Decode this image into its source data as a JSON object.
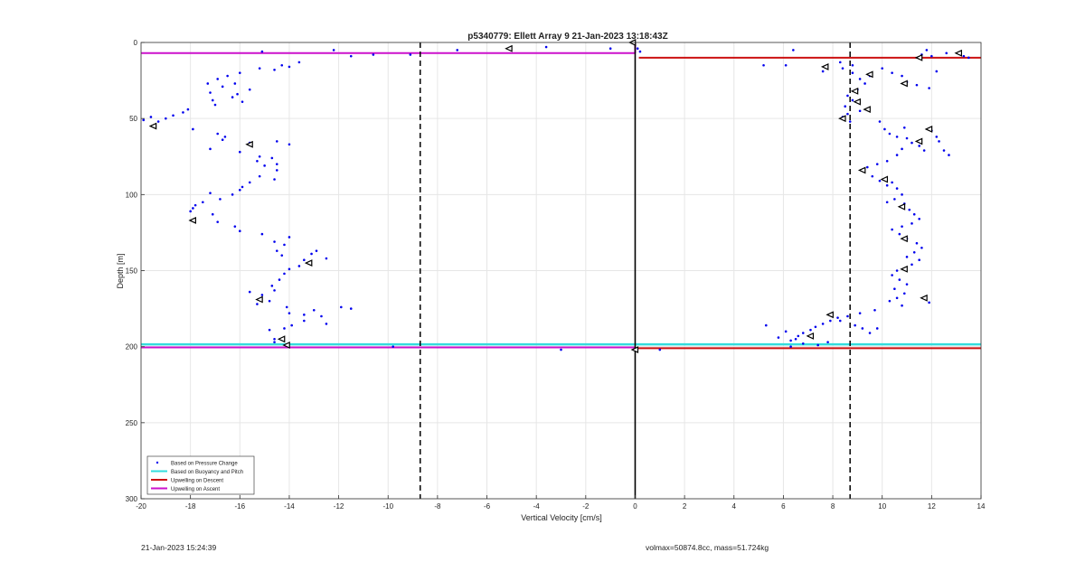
{
  "footer": {
    "timestamp": "21-Jan-2023 15:24:39",
    "volmax_mass": "volmax=50874.8cc, mass=51.724kg"
  },
  "colors": {
    "pressure": "#0000ee",
    "buoyancy": "#33dddd",
    "descent": "#cc1111",
    "ascent": "#cc11cc",
    "grid": "#e6e6e6"
  },
  "chart_data": {
    "type": "scatter",
    "title": "p5340779: Ellett Array 9 21-Jan-2023 13:18:43Z",
    "xlabel": "Vertical Velocity [cm/s]",
    "ylabel": "Depth [m]",
    "xlim": [
      -20,
      14
    ],
    "ylim": [
      0,
      300
    ],
    "y_reversed": true,
    "grid": true,
    "xticks": [
      -20,
      -18,
      -16,
      -14,
      -12,
      -10,
      -8,
      -6,
      -4,
      -2,
      0,
      2,
      4,
      6,
      8,
      10,
      12,
      14
    ],
    "yticks": [
      0,
      50,
      100,
      150,
      200,
      250,
      300
    ],
    "reference_lines": {
      "zero_velocity": 0,
      "dashed": [
        -8.7,
        8.7
      ]
    },
    "legend": {
      "placement": "bottom-left",
      "entries": [
        "Based on Pressure Change",
        "Based on Buoyancy and Pitch",
        "Upwelling on Descent",
        "Upwelling on Ascent"
      ]
    },
    "series": [
      {
        "name": "Based on Pressure Change",
        "marker": "dot",
        "points": [
          [
            -19.9,
            51
          ],
          [
            -19.6,
            49
          ],
          [
            -19.3,
            52
          ],
          [
            -19.0,
            50
          ],
          [
            -18.7,
            48
          ],
          [
            -18.3,
            46
          ],
          [
            -18.1,
            44
          ],
          [
            -17.9,
            57
          ],
          [
            -17.3,
            27
          ],
          [
            -17.2,
            33
          ],
          [
            -17.1,
            38
          ],
          [
            -17.0,
            41
          ],
          [
            -16.9,
            24
          ],
          [
            -16.7,
            29
          ],
          [
            -16.5,
            22
          ],
          [
            -16.3,
            36
          ],
          [
            -16.2,
            27
          ],
          [
            -16.1,
            34
          ],
          [
            -16.0,
            20
          ],
          [
            -15.9,
            39
          ],
          [
            -15.6,
            31
          ],
          [
            -15.2,
            17
          ],
          [
            -14.6,
            18
          ],
          [
            -14.3,
            15
          ],
          [
            -14.0,
            16
          ],
          [
            -13.6,
            13
          ],
          [
            -15.1,
            6
          ],
          [
            -16.9,
            60
          ],
          [
            -16.7,
            64
          ],
          [
            -16.6,
            62
          ],
          [
            -17.2,
            70
          ],
          [
            -16.0,
            72
          ],
          [
            -15.6,
            66
          ],
          [
            -15.3,
            78
          ],
          [
            -15.0,
            81
          ],
          [
            -15.2,
            75
          ],
          [
            -14.7,
            76
          ],
          [
            -14.5,
            80
          ],
          [
            -14.5,
            84
          ],
          [
            -14.5,
            65
          ],
          [
            -14.0,
            67
          ],
          [
            -14.6,
            90
          ],
          [
            -15.2,
            88
          ],
          [
            -15.6,
            92
          ],
          [
            -15.9,
            95
          ],
          [
            -16.0,
            97
          ],
          [
            -16.3,
            100
          ],
          [
            -17.2,
            99
          ],
          [
            -16.8,
            103
          ],
          [
            -17.5,
            105
          ],
          [
            -17.8,
            107
          ],
          [
            -17.9,
            109
          ],
          [
            -18.0,
            111
          ],
          [
            -17.1,
            113
          ],
          [
            -16.9,
            118
          ],
          [
            -16.2,
            121
          ],
          [
            -16.0,
            124
          ],
          [
            -15.1,
            126
          ],
          [
            -14.6,
            131
          ],
          [
            -14.2,
            133
          ],
          [
            -14.0,
            128
          ],
          [
            -14.5,
            137
          ],
          [
            -14.3,
            140
          ],
          [
            -13.4,
            143
          ],
          [
            -13.1,
            139
          ],
          [
            -12.9,
            137
          ],
          [
            -12.5,
            142
          ],
          [
            -13.6,
            147
          ],
          [
            -14.0,
            149
          ],
          [
            -14.2,
            152
          ],
          [
            -14.4,
            156
          ],
          [
            -14.7,
            160
          ],
          [
            -14.6,
            163
          ],
          [
            -15.1,
            166
          ],
          [
            -15.6,
            164
          ],
          [
            -15.3,
            172
          ],
          [
            -14.8,
            170
          ],
          [
            -14.1,
            174
          ],
          [
            -14.0,
            178
          ],
          [
            -13.4,
            179
          ],
          [
            -13.0,
            176
          ],
          [
            -12.7,
            180
          ],
          [
            -12.5,
            185
          ],
          [
            -13.4,
            183
          ],
          [
            -13.9,
            186
          ],
          [
            -14.2,
            188
          ],
          [
            -14.8,
            189
          ],
          [
            -14.6,
            195
          ],
          [
            -14.6,
            197
          ],
          [
            -11.9,
            174
          ],
          [
            -11.5,
            175
          ],
          [
            -12.2,
            5
          ],
          [
            -11.5,
            9
          ],
          [
            -10.6,
            8
          ],
          [
            -9.1,
            8
          ],
          [
            -7.2,
            5
          ],
          [
            -3.6,
            3
          ],
          [
            -1.0,
            4
          ],
          [
            0.1,
            4
          ],
          [
            0.2,
            6
          ],
          [
            -9.8,
            200
          ],
          [
            -3.0,
            202
          ],
          [
            1.0,
            202
          ],
          [
            5.2,
            15
          ],
          [
            6.1,
            15
          ],
          [
            6.4,
            5
          ],
          [
            7.6,
            19
          ],
          [
            8.3,
            13
          ],
          [
            8.4,
            17
          ],
          [
            8.8,
            15
          ],
          [
            8.8,
            20
          ],
          [
            9.1,
            24
          ],
          [
            9.3,
            27
          ],
          [
            9.5,
            22
          ],
          [
            9.0,
            31
          ],
          [
            8.6,
            35
          ],
          [
            8.8,
            38
          ],
          [
            8.5,
            42
          ],
          [
            8.6,
            47
          ],
          [
            8.4,
            49
          ],
          [
            8.7,
            52
          ],
          [
            9.1,
            45
          ],
          [
            10.0,
            17
          ],
          [
            10.4,
            20
          ],
          [
            10.8,
            22
          ],
          [
            11.0,
            26
          ],
          [
            11.4,
            28
          ],
          [
            11.9,
            30
          ],
          [
            12.2,
            19
          ],
          [
            11.6,
            8
          ],
          [
            12.0,
            9
          ],
          [
            12.6,
            7
          ],
          [
            13.3,
            9
          ],
          [
            13.5,
            10
          ],
          [
            11.8,
            5
          ],
          [
            9.9,
            52
          ],
          [
            10.1,
            57
          ],
          [
            10.3,
            60
          ],
          [
            10.6,
            62
          ],
          [
            10.9,
            56
          ],
          [
            11.0,
            63
          ],
          [
            11.2,
            66
          ],
          [
            11.5,
            68
          ],
          [
            11.7,
            71
          ],
          [
            12.0,
            58
          ],
          [
            12.2,
            62
          ],
          [
            12.3,
            65
          ],
          [
            12.5,
            71
          ],
          [
            12.7,
            74
          ],
          [
            10.8,
            70
          ],
          [
            10.6,
            74
          ],
          [
            10.2,
            78
          ],
          [
            9.8,
            80
          ],
          [
            9.4,
            82
          ],
          [
            9.2,
            84
          ],
          [
            9.6,
            88
          ],
          [
            9.9,
            91
          ],
          [
            10.2,
            94
          ],
          [
            10.4,
            92
          ],
          [
            10.6,
            96
          ],
          [
            10.8,
            100
          ],
          [
            10.5,
            103
          ],
          [
            10.2,
            105
          ],
          [
            10.9,
            106
          ],
          [
            11.1,
            110
          ],
          [
            11.3,
            113
          ],
          [
            11.5,
            116
          ],
          [
            11.2,
            119
          ],
          [
            10.8,
            121
          ],
          [
            10.4,
            123
          ],
          [
            10.7,
            126
          ],
          [
            11.0,
            129
          ],
          [
            11.4,
            132
          ],
          [
            11.6,
            135
          ],
          [
            11.3,
            138
          ],
          [
            11.0,
            141
          ],
          [
            11.5,
            143
          ],
          [
            11.2,
            146
          ],
          [
            10.6,
            150
          ],
          [
            10.4,
            153
          ],
          [
            10.7,
            156
          ],
          [
            11.0,
            159
          ],
          [
            10.5,
            162
          ],
          [
            10.9,
            165
          ],
          [
            10.6,
            168
          ],
          [
            10.3,
            170
          ],
          [
            10.8,
            173
          ],
          [
            11.9,
            171
          ],
          [
            9.7,
            176
          ],
          [
            9.1,
            178
          ],
          [
            8.6,
            180
          ],
          [
            8.2,
            181
          ],
          [
            7.9,
            183
          ],
          [
            7.6,
            185
          ],
          [
            7.3,
            187
          ],
          [
            7.1,
            189
          ],
          [
            6.8,
            191
          ],
          [
            6.6,
            193
          ],
          [
            6.5,
            195
          ],
          [
            6.3,
            196
          ],
          [
            6.1,
            190
          ],
          [
            5.8,
            194
          ],
          [
            5.3,
            186
          ],
          [
            6.3,
            200
          ],
          [
            6.8,
            198
          ],
          [
            7.4,
            199
          ],
          [
            7.8,
            197
          ],
          [
            8.3,
            183
          ],
          [
            8.9,
            186
          ],
          [
            9.2,
            188
          ],
          [
            9.8,
            188
          ],
          [
            9.5,
            191
          ]
        ]
      },
      {
        "name": "Based on Buoyancy and Pitch",
        "marker": "triangle",
        "points": [
          [
            -19.5,
            55
          ],
          [
            -15.6,
            67
          ],
          [
            -17.9,
            117
          ],
          [
            -13.2,
            145
          ],
          [
            -15.2,
            169
          ],
          [
            -14.3,
            195
          ],
          [
            -14.1,
            199
          ],
          [
            -5.1,
            4
          ],
          [
            -0.1,
            0
          ],
          [
            0.0,
            202
          ],
          [
            13.1,
            7
          ],
          [
            11.5,
            10
          ],
          [
            9.5,
            21
          ],
          [
            10.9,
            27
          ],
          [
            7.7,
            16
          ],
          [
            8.9,
            32
          ],
          [
            9.0,
            39
          ],
          [
            9.4,
            44
          ],
          [
            8.4,
            50
          ],
          [
            11.9,
            57
          ],
          [
            11.5,
            65
          ],
          [
            9.2,
            84
          ],
          [
            10.1,
            90
          ],
          [
            10.8,
            108
          ],
          [
            10.9,
            129
          ],
          [
            10.9,
            149
          ],
          [
            11.7,
            168
          ],
          [
            7.9,
            179
          ],
          [
            7.1,
            193
          ]
        ]
      },
      {
        "name": "Upwelling on Descent",
        "lines": [
          [
            0.15,
            14,
            10
          ],
          [
            0.0,
            14,
            201
          ]
        ]
      },
      {
        "name": "Upwelling on Ascent",
        "lines": [
          [
            -20,
            0.0,
            7
          ],
          [
            -20,
            0.0,
            200.5
          ]
        ]
      }
    ],
    "buoyancy_band_depth": 198.5
  }
}
